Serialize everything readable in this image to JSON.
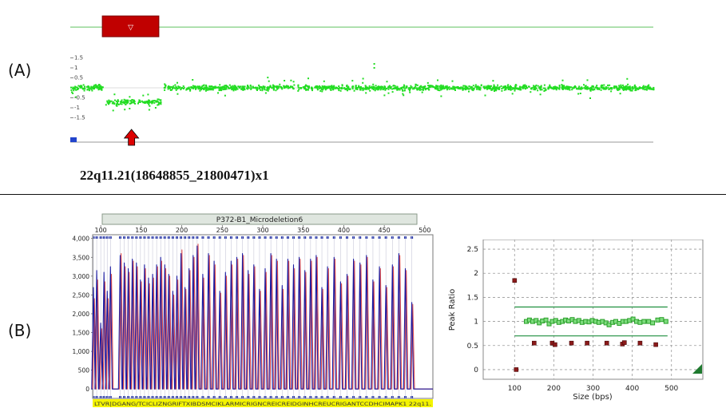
{
  "panels": {
    "a_label": "(A)",
    "b_label": "(B)",
    "a_caption": "22q11.21(18648855_21800471)x1"
  },
  "colors": {
    "probe_points": "#22dd22",
    "deletion_box": "#c00000",
    "arrow": "#dd0000",
    "trace_blue": "#1a1aa0",
    "trace_red": "#e05050",
    "lane_yellow": "#f4f400",
    "ratio_green": "#2aa02a",
    "ratio_red": "#8b1a1a",
    "threshold_line": "#1f8f3f"
  },
  "chart_data": [
    {
      "type": "scatter",
      "title": "",
      "y_ticks": [
        "1.5",
        "1",
        "0.5",
        "-0.5",
        "-1",
        "-1.5"
      ],
      "y_tick_values": [
        1.5,
        1,
        0.5,
        -0.5,
        -1,
        -1.5
      ],
      "ylim": [
        -2.0,
        2.0
      ],
      "segments": [
        {
          "x_range": [
            0.0,
            0.055
          ],
          "level": 0.0
        },
        {
          "x_range": [
            0.06,
            0.11
          ],
          "level": -0.72
        },
        {
          "x_range": [
            0.115,
            0.155
          ],
          "level": -0.72
        },
        {
          "x_range": [
            0.16,
            1.0
          ],
          "level": 0.0
        }
      ],
      "outliers": [
        {
          "x": 0.52,
          "y": 1.2
        },
        {
          "x": 0.52,
          "y": 1.0
        }
      ],
      "deletion_region": [
        0.055,
        0.155
      ],
      "grid": false,
      "annotations": [
        "red arrow under deletion region",
        "deletion box with ▽ marker"
      ]
    },
    {
      "type": "line",
      "title": "P372-B1_Microdeletion6",
      "x_ticks": [
        "100",
        "150",
        "200",
        "250",
        "300",
        "350",
        "400",
        "450",
        "500"
      ],
      "x_tick_values": [
        100,
        150,
        200,
        250,
        300,
        350,
        400,
        450,
        500
      ],
      "y_ticks": [
        "4,000",
        "3,500",
        "3,000",
        "2,500",
        "2,000",
        "1,500",
        "1,000",
        "500",
        "0"
      ],
      "y_tick_values": [
        4000,
        3500,
        3000,
        2500,
        2000,
        1500,
        1000,
        500,
        0
      ],
      "xlim": [
        90,
        510
      ],
      "ylim": [
        -250,
        4100
      ],
      "peaks": {
        "sizes": [
          91,
          95,
          100,
          104,
          108,
          112,
          124,
          129,
          134,
          139,
          144,
          149,
          154,
          159,
          164,
          169,
          174,
          179,
          184,
          189,
          194,
          199,
          204,
          209,
          214,
          219,
          226,
          233,
          240,
          247,
          254,
          261,
          268,
          275,
          282,
          289,
          296,
          303,
          310,
          317,
          324,
          331,
          338,
          345,
          352,
          359,
          366,
          373,
          380,
          388,
          396,
          404,
          412,
          420,
          428,
          436,
          444,
          452,
          460,
          468,
          476,
          484
        ],
        "blue": [
          2700,
          3150,
          1750,
          3100,
          2600,
          3250,
          3550,
          3350,
          3200,
          3450,
          3350,
          2900,
          3300,
          2950,
          3050,
          3300,
          3500,
          3300,
          3050,
          2600,
          3000,
          3600,
          2700,
          3200,
          3550,
          3800,
          3050,
          3600,
          3400,
          2600,
          3100,
          3400,
          3500,
          3600,
          3150,
          3300,
          2650,
          3200,
          3600,
          3450,
          2750,
          3450,
          3300,
          3500,
          3150,
          3450,
          3550,
          2700,
          3250,
          3500,
          2850,
          3050,
          3450,
          3350,
          3550,
          2900,
          3250,
          2750,
          3300,
          3600,
          3200,
          2300
        ],
        "red": [
          2400,
          2900,
          1600,
          2850,
          2400,
          3050,
          3600,
          3250,
          3100,
          3400,
          3250,
          2850,
          3200,
          2800,
          2950,
          3250,
          3400,
          3200,
          3000,
          2500,
          2900,
          3700,
          2650,
          3150,
          3500,
          3850,
          2950,
          3550,
          3300,
          2550,
          3000,
          3300,
          3450,
          3550,
          3050,
          3250,
          2600,
          3100,
          3550,
          3400,
          2650,
          3400,
          3200,
          3450,
          3100,
          3400,
          3500,
          2650,
          3200,
          3450,
          2800,
          3000,
          3400,
          3300,
          3500,
          2850,
          3200,
          2700,
          3250,
          3550,
          3150,
          2250
        ]
      },
      "lane_labels": "LTVR|DGANG/TCICLIZNGRIFTXIBDSMCIKLARMICRIGNCREICREIDGINHCREUCRIGANTCCDHCIMAPK1 22q11.",
      "grid": false
    },
    {
      "type": "scatter",
      "title": "",
      "xlabel": "Size (bps)",
      "ylabel": "Peak Ratio",
      "x_ticks": [
        "100",
        "200",
        "300",
        "400",
        "500"
      ],
      "x_tick_values": [
        100,
        200,
        300,
        400,
        500
      ],
      "y_ticks": [
        "2.5",
        "2",
        "1.5",
        "1",
        "0.5",
        "0"
      ],
      "y_tick_values": [
        2.5,
        2,
        1.5,
        1,
        0.5,
        0
      ],
      "xlim": [
        20,
        580
      ],
      "ylim": [
        -0.2,
        2.7
      ],
      "upper_threshold": 1.3,
      "lower_threshold": 0.7,
      "threshold_x_range": [
        100,
        490
      ],
      "series": [
        {
          "color_role": "ratio_green",
          "points": [
            [
              130,
              1.0
            ],
            [
              138,
              1.03
            ],
            [
              146,
              1.0
            ],
            [
              155,
              1.02
            ],
            [
              163,
              0.97
            ],
            [
              171,
              1.01
            ],
            [
              180,
              1.03
            ],
            [
              188,
              0.95
            ],
            [
              196,
              1.0
            ],
            [
              205,
              1.02
            ],
            [
              213,
              0.98
            ],
            [
              222,
              1.0
            ],
            [
              230,
              1.03
            ],
            [
              238,
              1.01
            ],
            [
              247,
              1.04
            ],
            [
              255,
              1.0
            ],
            [
              264,
              1.02
            ],
            [
              272,
              0.98
            ],
            [
              281,
              1.0
            ],
            [
              290,
              0.99
            ],
            [
              298,
              1.02
            ],
            [
              307,
              1.0
            ],
            [
              315,
              0.98
            ],
            [
              324,
              1.0
            ],
            [
              333,
              0.97
            ],
            [
              341,
              0.93
            ],
            [
              350,
              0.98
            ],
            [
              358,
              1.0
            ],
            [
              367,
              0.96
            ],
            [
              376,
              1.0
            ],
            [
              384,
              1.0
            ],
            [
              393,
              1.02
            ],
            [
              402,
              1.05
            ],
            [
              411,
              1.0
            ],
            [
              420,
              0.98
            ],
            [
              430,
              1.0
            ],
            [
              442,
              1.0
            ],
            [
              452,
              0.97
            ],
            [
              465,
              1.03
            ],
            [
              475,
              1.04
            ],
            [
              486,
              1.0
            ]
          ]
        },
        {
          "color_role": "ratio_red",
          "points": [
            [
              100,
              1.85
            ],
            [
              104,
              0.0
            ],
            [
              150,
              0.55
            ],
            [
              196,
              0.55
            ],
            [
              203,
              0.52
            ],
            [
              245,
              0.55
            ],
            [
              285,
              0.55
            ],
            [
              335,
              0.55
            ],
            [
              375,
              0.53
            ],
            [
              380,
              0.56
            ],
            [
              420,
              0.55
            ],
            [
              460,
              0.52
            ]
          ]
        }
      ],
      "grid": true
    }
  ]
}
